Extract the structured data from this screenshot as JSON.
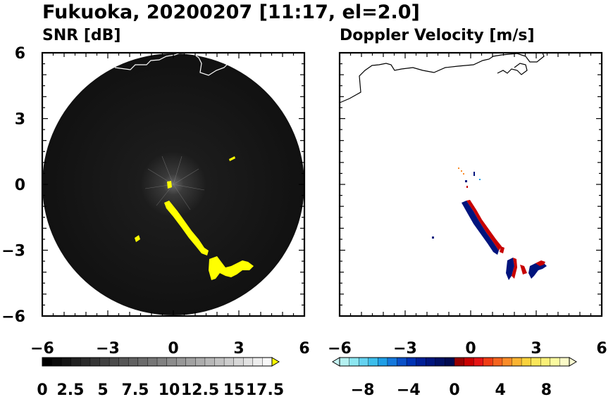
{
  "title": "Fukuoka, 20200207 [11:17, el=2.0]",
  "chart_data": [
    {
      "type": "heatmap",
      "title": "SNR [dB]",
      "xlim": [
        -6,
        6
      ],
      "ylim": [
        -6,
        6
      ],
      "x_ticks": [
        "−6",
        "−3",
        "0",
        "3",
        "6"
      ],
      "y_ticks": [
        "6",
        "3",
        "0",
        "−3",
        "−6"
      ],
      "colorbar": {
        "labels": [
          "0",
          "2.5",
          "5",
          "7.5",
          "10",
          "12.5",
          "15",
          "17.5"
        ],
        "colors": [
          "#000000",
          "#0a0a0a",
          "#151515",
          "#202020",
          "#2a2a2a",
          "#353535",
          "#404040",
          "#4b4b4b",
          "#565656",
          "#616161",
          "#6b6b6b",
          "#767676",
          "#818181",
          "#8c8c8c",
          "#979797",
          "#a1a1a1",
          "#acacac",
          "#b7b7b7",
          "#c2c2c2",
          "#cdcdcd",
          "#d7d7d7",
          "#e2e2e2",
          "#ededed",
          "#f8f8f8"
        ],
        "over_color": "#ffff00"
      },
      "background_color": "#000000",
      "echo_color": "#ffff00"
    },
    {
      "type": "heatmap",
      "title": "Doppler Velocity [m/s]",
      "xlim": [
        -6,
        6
      ],
      "ylim": [
        -6,
        6
      ],
      "x_ticks": [
        "−6",
        "−3",
        "0",
        "3",
        "6"
      ],
      "y_ticks": [
        "6",
        "3",
        "0",
        "−3",
        "−6"
      ],
      "colorbar": {
        "labels": [
          "−8",
          "−4",
          "0",
          "4",
          "8"
        ],
        "colors": [
          "#b4f0f0",
          "#8ce6f0",
          "#64d2f0",
          "#3cbeeb",
          "#1e9ee6",
          "#1478dc",
          "#0a50c8",
          "#0032b4",
          "#001e96",
          "#00147d",
          "#000f64",
          "#000a50",
          "#960000",
          "#c80000",
          "#e61414",
          "#f03c14",
          "#f5641e",
          "#fa8c28",
          "#fab432",
          "#fad23c",
          "#fae65a",
          "#faf078",
          "#fafaa0",
          "#fafac8"
        ],
        "under_color": "#c8f5f5",
        "over_color": "#fafad2"
      }
    }
  ]
}
